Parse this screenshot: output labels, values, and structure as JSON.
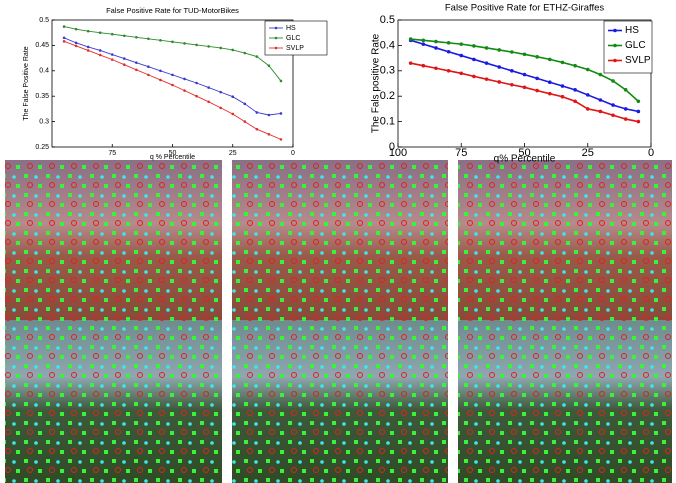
{
  "chart_data": [
    {
      "type": "line",
      "title": "False Positive Rate for TUD-MotorBikes",
      "x_label": "q % Percentile",
      "y_label": "The False Positive Rate",
      "x": [
        95,
        90,
        85,
        80,
        75,
        70,
        65,
        60,
        55,
        50,
        45,
        40,
        35,
        30,
        25,
        20,
        15,
        10,
        5
      ],
      "series": [
        {
          "name": "HS",
          "color": "#3b3bd0",
          "values": [
            0.465,
            0.455,
            0.447,
            0.44,
            0.432,
            0.424,
            0.416,
            0.408,
            0.4,
            0.392,
            0.384,
            0.376,
            0.367,
            0.358,
            0.349,
            0.335,
            0.318,
            0.313,
            0.316
          ]
        },
        {
          "name": "GLC",
          "color": "#2e8b2e",
          "values": [
            0.487,
            0.482,
            0.478,
            0.475,
            0.472,
            0.469,
            0.466,
            0.463,
            0.46,
            0.457,
            0.454,
            0.451,
            0.448,
            0.445,
            0.441,
            0.435,
            0.428,
            0.41,
            0.38
          ]
        },
        {
          "name": "SVLP",
          "color": "#e03030",
          "values": [
            0.458,
            0.449,
            0.44,
            0.431,
            0.422,
            0.412,
            0.402,
            0.392,
            0.382,
            0.372,
            0.361,
            0.35,
            0.339,
            0.327,
            0.315,
            0.3,
            0.285,
            0.275,
            0.265
          ]
        }
      ],
      "xlim": [
        100,
        0
      ],
      "xticks": [
        75,
        50,
        25,
        0
      ],
      "ylim": [
        0.25,
        0.5
      ],
      "yticks": [
        0.25,
        0.3,
        0.35,
        0.4,
        0.45,
        0.5
      ],
      "legend": "upper right"
    },
    {
      "type": "line",
      "title": "False Positive Rate for ETHZ-Giraffes",
      "x_label": "q% Percentile",
      "y_label": "The Fals positive Rate",
      "x": [
        95,
        90,
        85,
        80,
        75,
        70,
        65,
        60,
        55,
        50,
        45,
        40,
        35,
        30,
        25,
        20,
        15,
        10,
        5
      ],
      "series": [
        {
          "name": "HS",
          "color": "#1a1ae0",
          "values": [
            0.42,
            0.405,
            0.39,
            0.375,
            0.36,
            0.345,
            0.33,
            0.315,
            0.3,
            0.285,
            0.27,
            0.255,
            0.24,
            0.225,
            0.205,
            0.185,
            0.165,
            0.15,
            0.14
          ]
        },
        {
          "name": "GLC",
          "color": "#138a13",
          "values": [
            0.425,
            0.42,
            0.415,
            0.41,
            0.405,
            0.398,
            0.39,
            0.382,
            0.374,
            0.365,
            0.355,
            0.345,
            0.333,
            0.32,
            0.305,
            0.285,
            0.26,
            0.225,
            0.18
          ]
        },
        {
          "name": "SVLP",
          "color": "#e01515",
          "values": [
            0.33,
            0.32,
            0.31,
            0.3,
            0.29,
            0.278,
            0.267,
            0.256,
            0.245,
            0.235,
            0.222,
            0.21,
            0.198,
            0.18,
            0.15,
            0.14,
            0.125,
            0.11,
            0.1
          ]
        }
      ],
      "xlim": [
        100,
        0
      ],
      "xticks": [
        100,
        75,
        50,
        25,
        0
      ],
      "ylim": [
        0,
        0.5
      ],
      "yticks": [
        0,
        0.1,
        0.2,
        0.3,
        0.4,
        0.5
      ],
      "legend": "upper right"
    }
  ]
}
